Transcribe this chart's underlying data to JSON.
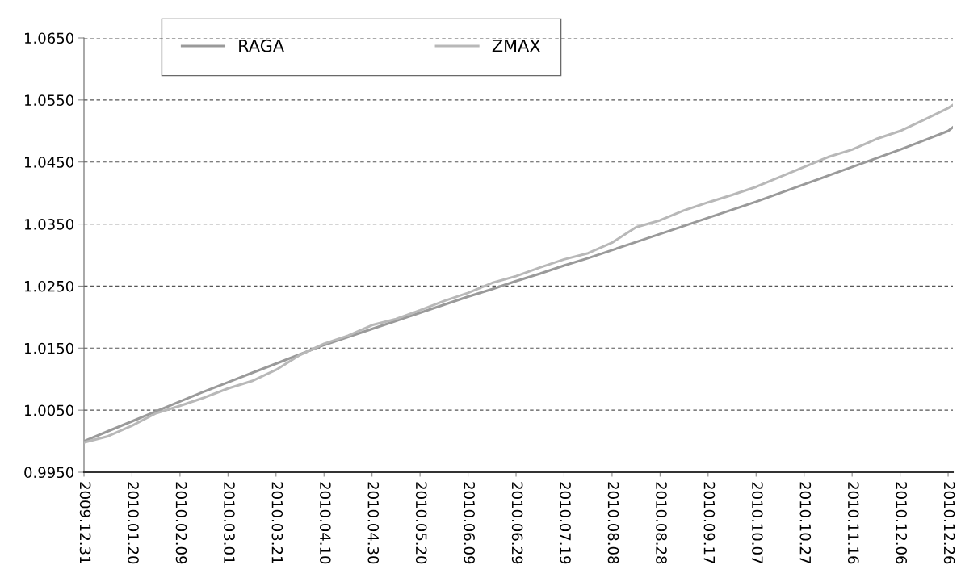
{
  "chart_data": {
    "type": "line",
    "x": [
      "2009-12-31",
      "2010-01-10",
      "2010-01-20",
      "2010-01-30",
      "2010-02-09",
      "2010-02-19",
      "2010-03-01",
      "2010-03-11",
      "2010-03-21",
      "2010-03-31",
      "2010-04-10",
      "2010-04-20",
      "2010-04-30",
      "2010-05-10",
      "2010-05-20",
      "2010-05-30",
      "2010-06-09",
      "2010-06-19",
      "2010-06-29",
      "2010-07-09",
      "2010-07-19",
      "2010-07-29",
      "2010-08-08",
      "2010-08-18",
      "2010-08-28",
      "2010-09-07",
      "2010-09-17",
      "2010-09-27",
      "2010-10-07",
      "2010-10-17",
      "2010-10-27",
      "2010-11-06",
      "2010-11-16",
      "2010-11-26",
      "2010-12-06",
      "2010-12-16",
      "2010-12-26",
      "2010-12-28"
    ],
    "series": [
      {
        "name": "RAGA",
        "color": "#9a9a9a",
        "values": [
          1.0,
          1.0016,
          1.0032,
          1.0048,
          1.0064,
          1.008,
          1.0095,
          1.011,
          1.0125,
          1.014,
          1.0155,
          1.0168,
          1.0181,
          1.0194,
          1.0207,
          1.022,
          1.0233,
          1.0245,
          1.0258,
          1.027,
          1.0283,
          1.0295,
          1.0308,
          1.0321,
          1.0334,
          1.0347,
          1.036,
          1.0373,
          1.0386,
          1.04,
          1.0414,
          1.0428,
          1.0442,
          1.0456,
          1.047,
          1.0485,
          1.05,
          1.0506
        ]
      },
      {
        "name": "ZMAX",
        "color": "#b8b8b8",
        "values": [
          0.9998,
          1.0008,
          1.0025,
          1.0045,
          1.0057,
          1.007,
          1.0085,
          1.0097,
          1.0115,
          1.0139,
          1.0157,
          1.017,
          1.0187,
          1.0197,
          1.0211,
          1.0226,
          1.0239,
          1.0255,
          1.0266,
          1.028,
          1.0293,
          1.0303,
          1.032,
          1.0345,
          1.0356,
          1.0372,
          1.0385,
          1.0397,
          1.041,
          1.0426,
          1.0442,
          1.0458,
          1.047,
          1.0487,
          1.05,
          1.0518,
          1.0537,
          1.0542
        ]
      }
    ],
    "xlim": [
      "2009-12-31",
      "2010-12-28"
    ],
    "xticks": [
      {
        "value": "2009-12-31",
        "label": "2009.12.31"
      },
      {
        "value": "2010-01-20",
        "label": "2010.01.20"
      },
      {
        "value": "2010-02-09",
        "label": "2010.02.09"
      },
      {
        "value": "2010-03-01",
        "label": "2010.03.01"
      },
      {
        "value": "2010-03-21",
        "label": "2010.03.21"
      },
      {
        "value": "2010-04-10",
        "label": "2010.04.10"
      },
      {
        "value": "2010-04-30",
        "label": "2010.04.30"
      },
      {
        "value": "2010-05-20",
        "label": "2010.05.20"
      },
      {
        "value": "2010-06-09",
        "label": "2010.06.09"
      },
      {
        "value": "2010-06-29",
        "label": "2010.06.29"
      },
      {
        "value": "2010-07-19",
        "label": "2010.07.19"
      },
      {
        "value": "2010-08-08",
        "label": "2010.08.08"
      },
      {
        "value": "2010-08-28",
        "label": "2010.08.28"
      },
      {
        "value": "2010-09-17",
        "label": "2010.09.17"
      },
      {
        "value": "2010-10-07",
        "label": "2010.10.07"
      },
      {
        "value": "2010-10-27",
        "label": "2010.10.27"
      },
      {
        "value": "2010-11-16",
        "label": "2010.11.16"
      },
      {
        "value": "2010-12-06",
        "label": "2010.12.06"
      },
      {
        "value": "2010-12-26",
        "label": "2010.12.26"
      }
    ],
    "ylim": [
      0.995,
      1.065
    ],
    "yticks": [
      {
        "value": 0.995,
        "label": "0.9950"
      },
      {
        "value": 1.005,
        "label": "1.0050"
      },
      {
        "value": 1.015,
        "label": "1.0150"
      },
      {
        "value": 1.025,
        "label": "1.0250"
      },
      {
        "value": 1.035,
        "label": "1.0350"
      },
      {
        "value": 1.045,
        "label": "1.0450"
      },
      {
        "value": 1.055,
        "label": "1.0550"
      },
      {
        "value": 1.065,
        "label": "1.0650"
      }
    ],
    "grid": "y",
    "legend": "top left",
    "marker": "none",
    "line_style": "solid"
  }
}
